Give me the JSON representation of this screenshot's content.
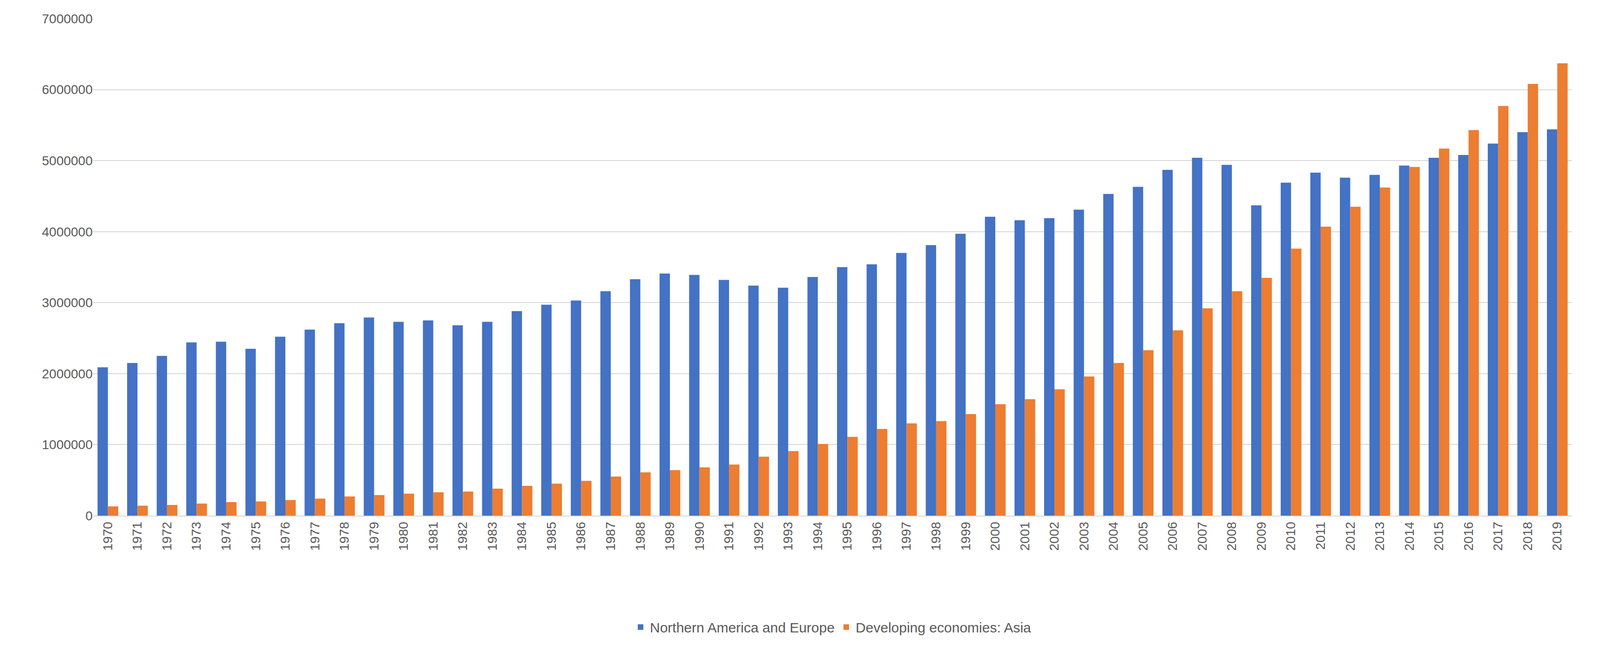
{
  "chart_data": {
    "type": "bar",
    "categories": [
      "1970",
      "1971",
      "1972",
      "1973",
      "1974",
      "1975",
      "1976",
      "1977",
      "1978",
      "1979",
      "1980",
      "1981",
      "1982",
      "1983",
      "1984",
      "1985",
      "1986",
      "1987",
      "1988",
      "1989",
      "1990",
      "1991",
      "1992",
      "1993",
      "1994",
      "1995",
      "1996",
      "1997",
      "1998",
      "1999",
      "2000",
      "2001",
      "2002",
      "2003",
      "2004",
      "2005",
      "2006",
      "2007",
      "2008",
      "2009",
      "2010",
      "2011",
      "2012",
      "2013",
      "2014",
      "2015",
      "2016",
      "2017",
      "2018",
      "2019"
    ],
    "series": [
      {
        "name": "Northern America and Europe",
        "color": "#4472c4",
        "values": [
          2090000,
          2150000,
          2250000,
          2440000,
          2450000,
          2350000,
          2520000,
          2620000,
          2710000,
          2790000,
          2730000,
          2750000,
          2680000,
          2730000,
          2880000,
          2970000,
          3030000,
          3160000,
          3330000,
          3410000,
          3390000,
          3320000,
          3240000,
          3210000,
          3360000,
          3500000,
          3540000,
          3700000,
          3810000,
          3970000,
          4210000,
          4160000,
          4190000,
          4310000,
          4530000,
          4630000,
          4870000,
          5040000,
          4940000,
          4370000,
          4690000,
          4830000,
          4760000,
          4800000,
          4930000,
          5040000,
          5080000,
          5240000,
          5400000,
          5440000
        ]
      },
      {
        "name": "Developing economies: Asia",
        "color": "#ed7d31",
        "values": [
          130000,
          140000,
          150000,
          170000,
          190000,
          200000,
          220000,
          240000,
          270000,
          290000,
          310000,
          330000,
          340000,
          380000,
          420000,
          450000,
          490000,
          550000,
          610000,
          640000,
          680000,
          720000,
          830000,
          910000,
          1010000,
          1110000,
          1220000,
          1300000,
          1330000,
          1430000,
          1570000,
          1640000,
          1780000,
          1960000,
          2150000,
          2330000,
          2610000,
          2920000,
          3160000,
          3350000,
          3760000,
          4070000,
          4350000,
          4620000,
          4910000,
          5170000,
          5430000,
          5770000,
          6080000,
          6370000
        ]
      }
    ],
    "ylim": [
      0,
      7000000
    ],
    "yticks": [
      0,
      1000000,
      2000000,
      3000000,
      4000000,
      5000000,
      6000000,
      7000000
    ],
    "grid": true,
    "legend": "bottom"
  }
}
